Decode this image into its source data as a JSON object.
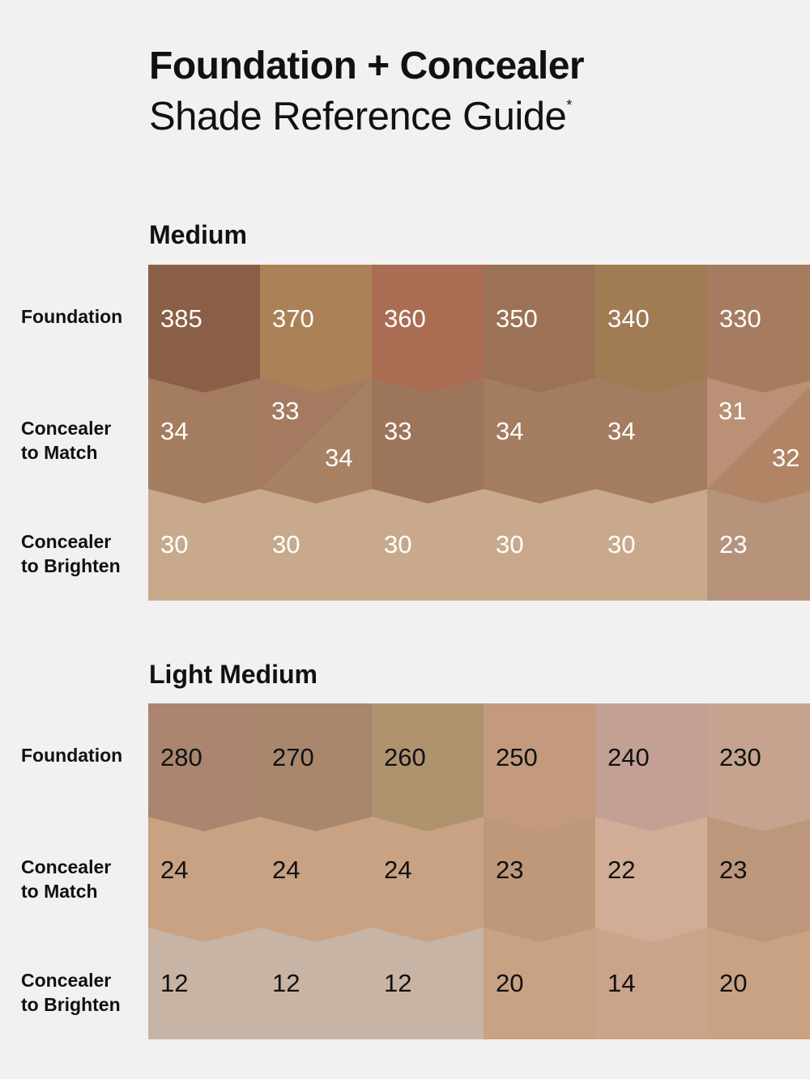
{
  "title": {
    "line1": "Foundation + Concealer",
    "line2": "Shade Reference Guide",
    "mark": "*"
  },
  "row_labels": {
    "foundation": "Foundation",
    "match": [
      "Concealer",
      "to Match"
    ],
    "brighten": [
      "Concealer",
      "to Brighten"
    ]
  },
  "sections": [
    {
      "id": "medium",
      "title": "Medium",
      "text_color": "#ffffff",
      "foundation": [
        {
          "label": "385",
          "color": "#8b5f47"
        },
        {
          "label": "370",
          "color": "#ab8157"
        },
        {
          "label": "360",
          "color": "#aa6d54"
        },
        {
          "label": "350",
          "color": "#9c7256"
        },
        {
          "label": "340",
          "color": "#a07b53"
        },
        {
          "label": "330",
          "color": "#a57c60"
        }
      ],
      "match": [
        {
          "label": "34",
          "color": "#a47c5f"
        },
        {
          "label": "33",
          "label2": "34",
          "color": "#a47b60",
          "color2": "#a78162"
        },
        {
          "label": "33",
          "color": "#9d755b"
        },
        {
          "label": "34",
          "color": "#a47c5f"
        },
        {
          "label": "34",
          "color": "#a47c5f"
        },
        {
          "label": "31",
          "label2": "32",
          "color": "#ba9176",
          "color2": "#b18466"
        }
      ],
      "brighten": [
        {
          "label": "30",
          "color": "#c9a98c"
        },
        {
          "label": "30",
          "color": "#c9a98c"
        },
        {
          "label": "30",
          "color": "#c9a98c"
        },
        {
          "label": "30",
          "color": "#c9a98c"
        },
        {
          "label": "30",
          "color": "#c9a98c"
        },
        {
          "label": "23",
          "color": "#b7937b"
        }
      ]
    },
    {
      "id": "light-medium",
      "title": "Light Medium",
      "text_color": "#111111",
      "foundation": [
        {
          "label": "280",
          "color": "#ab8570"
        },
        {
          "label": "270",
          "color": "#a9876d"
        },
        {
          "label": "260",
          "color": "#af936f"
        },
        {
          "label": "250",
          "color": "#c39a7e"
        },
        {
          "label": "240",
          "color": "#c3a094"
        },
        {
          "label": "230",
          "color": "#c5a38e"
        }
      ],
      "match": [
        {
          "label": "24",
          "color": "#c9a283"
        },
        {
          "label": "24",
          "color": "#c9a283"
        },
        {
          "label": "24",
          "color": "#c9a283"
        },
        {
          "label": "23",
          "color": "#bf9879"
        },
        {
          "label": "22",
          "color": "#d1ad97"
        },
        {
          "label": "23",
          "color": "#bd977c"
        }
      ],
      "brighten": [
        {
          "label": "12",
          "color": "#c8b4a4"
        },
        {
          "label": "12",
          "color": "#c8b4a4"
        },
        {
          "label": "12",
          "color": "#c8b4a4"
        },
        {
          "label": "20",
          "color": "#c9a284"
        },
        {
          "label": "14",
          "color": "#c9a38a"
        },
        {
          "label": "20",
          "color": "#c9a284"
        }
      ]
    }
  ]
}
